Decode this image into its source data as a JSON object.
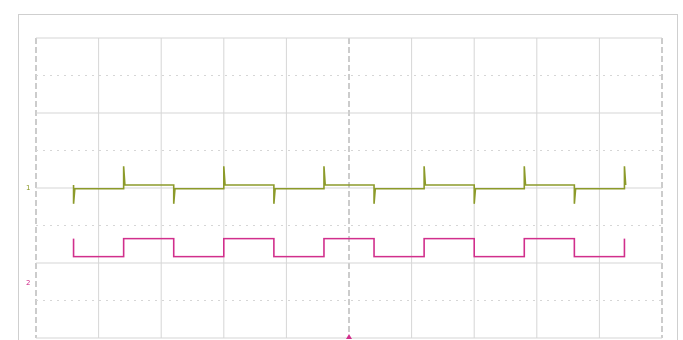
{
  "chart_data": {
    "type": "line",
    "title": "",
    "xlabel": "",
    "ylabel": "",
    "grid": true,
    "grid_divisions": {
      "x": 10,
      "y": 8
    },
    "xlim": [
      0,
      10
    ],
    "ylim": [
      0,
      8
    ],
    "x_unit": "div",
    "y_unit": "div",
    "trigger_marker": {
      "x": 5.0
    },
    "series": [
      {
        "channel_marker": "1",
        "color": "#8c9a2a",
        "kind": "spike-train",
        "description_free": true,
        "baseline_high": 4.08,
        "baseline_low": 3.98,
        "period": 1.6,
        "phase": -0.2,
        "duty": 0.5,
        "spike_up": 0.6,
        "spike_down": 0.5,
        "x_start": 0.0,
        "x_end": 10.0
      },
      {
        "channel_marker": "2",
        "color": "#d12f8c",
        "kind": "square",
        "level_high": 2.65,
        "level_low": 2.17,
        "period": 1.6,
        "phase": -0.2,
        "duty": 0.5,
        "x_start": 0.0,
        "x_end": 10.0,
        "channel_label_y": 1.5
      }
    ]
  }
}
